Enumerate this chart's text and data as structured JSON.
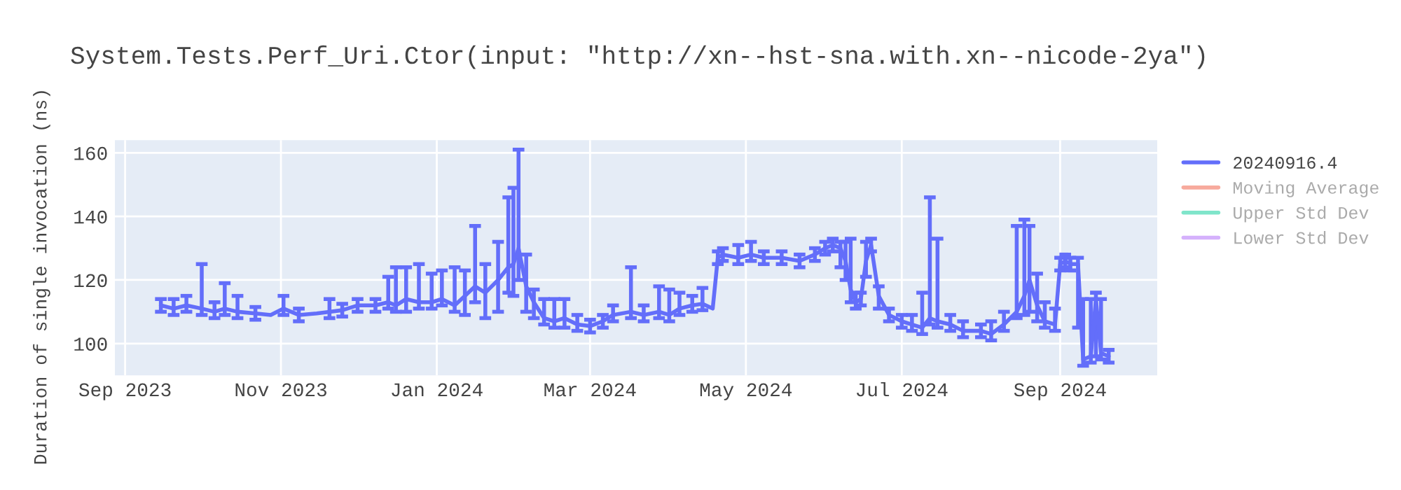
{
  "chart_data": {
    "type": "line",
    "title": "System.Tests.Perf_Uri.Ctor(input: \"http://xn--hst-sna.with.xn--nicode-2ya\")",
    "ylabel": "Duration of single invocation (ns)",
    "xlim": [
      "2023-08-28",
      "2024-10-09"
    ],
    "xticks": [
      {
        "value": "2023-09-01",
        "label": "Sep 2023"
      },
      {
        "value": "2023-11-01",
        "label": "Nov 2023"
      },
      {
        "value": "2024-01-01",
        "label": "Jan 2024"
      },
      {
        "value": "2024-03-01",
        "label": "Mar 2024"
      },
      {
        "value": "2024-05-01",
        "label": "May 2024"
      },
      {
        "value": "2024-07-01",
        "label": "Jul 2024"
      },
      {
        "value": "2024-09-01",
        "label": "Sep 2024"
      }
    ],
    "ylim": [
      90,
      164
    ],
    "yticks": [
      100,
      120,
      140,
      160
    ],
    "grid": true,
    "legend": "top right",
    "marker": "none",
    "line_style": "solid",
    "series": [
      {
        "name": "20240916.4",
        "color": "#636efa",
        "x": [
          "2023-09-15",
          "2023-09-20",
          "2023-09-25",
          "2023-10-01",
          "2023-10-06",
          "2023-10-10",
          "2023-10-15",
          "2023-10-22",
          "2023-10-28",
          "2023-11-02",
          "2023-11-08",
          "2023-11-15",
          "2023-11-20",
          "2023-11-25",
          "2023-12-01",
          "2023-12-08",
          "2023-12-13",
          "2023-12-16",
          "2023-12-20",
          "2023-12-25",
          "2023-12-30",
          "2024-01-03",
          "2024-01-08",
          "2024-01-12",
          "2024-01-16",
          "2024-01-20",
          "2024-01-25",
          "2024-01-29",
          "2024-01-31",
          "2024-02-02",
          "2024-02-05",
          "2024-02-08",
          "2024-02-12",
          "2024-02-16",
          "2024-02-20",
          "2024-02-25",
          "2024-03-01",
          "2024-03-06",
          "2024-03-10",
          "2024-03-17",
          "2024-03-22",
          "2024-03-28",
          "2024-04-01",
          "2024-04-05",
          "2024-04-10",
          "2024-04-14",
          "2024-04-18",
          "2024-04-20",
          "2024-04-22",
          "2024-04-28",
          "2024-05-03",
          "2024-05-08",
          "2024-05-15",
          "2024-05-22",
          "2024-05-28",
          "2024-06-01",
          "2024-06-04",
          "2024-06-07",
          "2024-06-09",
          "2024-06-11",
          "2024-06-13",
          "2024-06-15",
          "2024-06-17",
          "2024-06-19",
          "2024-06-22",
          "2024-06-26",
          "2024-07-01",
          "2024-07-05",
          "2024-07-09",
          "2024-07-12",
          "2024-07-15",
          "2024-07-20",
          "2024-07-25",
          "2024-08-01",
          "2024-08-05",
          "2024-08-10",
          "2024-08-15",
          "2024-08-18",
          "2024-08-20",
          "2024-08-23",
          "2024-08-26",
          "2024-08-30",
          "2024-09-01",
          "2024-09-03",
          "2024-09-05",
          "2024-09-08",
          "2024-09-10",
          "2024-09-13",
          "2024-09-15",
          "2024-09-17",
          "2024-09-20"
        ],
        "values": [
          112,
          111,
          112,
          111,
          110,
          111,
          110,
          109.5,
          109,
          111,
          109,
          109.5,
          110,
          110.5,
          112,
          112,
          113,
          112,
          114,
          113,
          113,
          114,
          112,
          115,
          118,
          116,
          120,
          124,
          125,
          130,
          118,
          113,
          108,
          107,
          108,
          106,
          105.5,
          107,
          109,
          110,
          109,
          110,
          109,
          111,
          112,
          112.5,
          111,
          127,
          128,
          127,
          128,
          127,
          127,
          126,
          128,
          130,
          131,
          130,
          126,
          117,
          113,
          114,
          126,
          131,
          115,
          109,
          107,
          106,
          105,
          108,
          107,
          106,
          104,
          104,
          103,
          106,
          110,
          115,
          120,
          112,
          107,
          106,
          125,
          126,
          125,
          125,
          95,
          96,
          114,
          97,
          96
        ],
        "errors": [
          [
            110,
            114
          ],
          [
            109,
            114
          ],
          [
            110,
            115
          ],
          [
            109,
            125
          ],
          [
            108,
            113
          ],
          [
            109,
            119
          ],
          [
            108,
            115
          ],
          [
            107.5,
            111.5
          ],
          null,
          [
            109,
            115
          ],
          [
            107,
            111
          ],
          null,
          [
            108,
            114
          ],
          [
            108.5,
            112.5
          ],
          [
            110,
            114
          ],
          [
            110,
            114
          ],
          [
            111,
            121
          ],
          [
            110,
            124
          ],
          [
            110,
            124
          ],
          [
            111,
            125
          ],
          [
            111,
            122
          ],
          [
            112,
            123
          ],
          [
            110,
            124
          ],
          [
            109,
            123
          ],
          [
            113,
            137
          ],
          [
            108,
            125
          ],
          [
            110,
            132
          ],
          [
            116,
            146
          ],
          [
            115,
            149
          ],
          [
            120,
            161
          ],
          [
            110,
            128
          ],
          [
            108,
            117
          ],
          [
            106,
            114
          ],
          [
            105,
            114
          ],
          [
            105,
            114
          ],
          [
            104,
            109
          ],
          [
            103.5,
            107.5
          ],
          [
            105,
            109
          ],
          [
            107,
            112
          ],
          [
            108,
            124
          ],
          [
            107,
            112
          ],
          [
            108,
            118
          ],
          [
            107,
            117
          ],
          [
            109,
            116
          ],
          [
            110,
            115
          ],
          [
            110.5,
            117.5
          ],
          null,
          [
            125,
            129
          ],
          [
            126,
            130
          ],
          [
            125,
            131
          ],
          [
            126,
            132
          ],
          [
            125,
            129
          ],
          [
            125,
            129
          ],
          [
            124,
            128
          ],
          [
            126,
            130
          ],
          [
            128,
            132
          ],
          [
            129,
            133
          ],
          [
            124,
            132
          ],
          [
            120,
            132
          ],
          [
            113,
            133
          ],
          [
            111,
            116
          ],
          [
            112,
            116
          ],
          [
            121,
            132
          ],
          [
            129,
            133
          ],
          [
            111,
            118
          ],
          [
            107,
            111
          ],
          [
            105,
            109
          ],
          [
            104,
            109
          ],
          [
            103,
            116
          ],
          [
            106,
            146
          ],
          [
            105,
            133
          ],
          [
            104,
            109
          ],
          [
            102,
            107
          ],
          [
            102,
            106
          ],
          [
            101,
            107
          ],
          [
            104,
            110
          ],
          [
            108,
            137
          ],
          [
            109,
            139
          ],
          [
            110,
            137
          ],
          [
            107,
            122
          ],
          [
            105,
            113
          ],
          [
            104,
            111
          ],
          [
            123,
            127
          ],
          [
            124,
            128
          ],
          [
            123,
            127
          ],
          [
            105,
            127
          ],
          [
            93,
            114
          ],
          [
            94,
            114
          ],
          [
            96,
            116
          ],
          [
            95,
            114
          ],
          [
            94,
            98
          ]
        ]
      },
      {
        "name": "Moving Average",
        "color": "#ef553b"
      },
      {
        "name": "Upper Std Dev",
        "color": "#00cc96"
      },
      {
        "name": "Lower Std Dev",
        "color": "#ab63fa"
      }
    ]
  }
}
